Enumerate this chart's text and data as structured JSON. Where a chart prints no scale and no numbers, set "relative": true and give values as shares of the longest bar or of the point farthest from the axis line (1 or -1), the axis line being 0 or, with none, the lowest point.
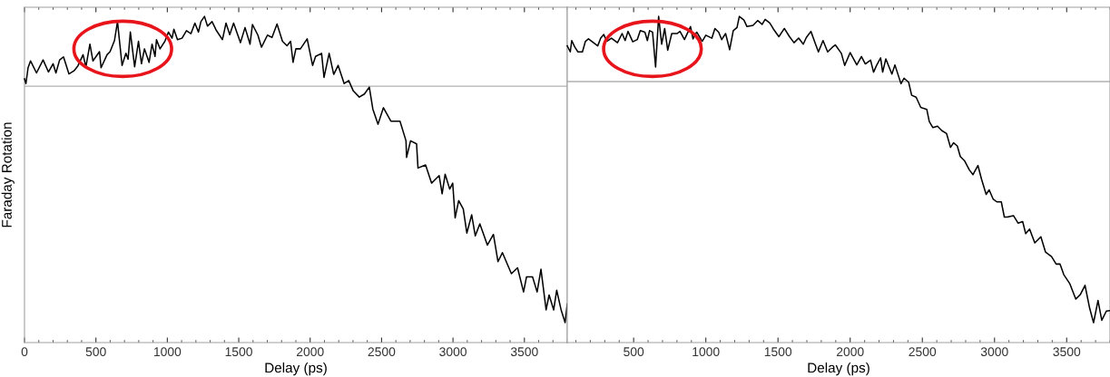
{
  "chart_data": [
    {
      "type": "line",
      "xlabel": "Delay (ps)",
      "ylabel": "Faraday Rotation",
      "relative": true,
      "xlim": [
        0,
        3800
      ],
      "xticks": [
        0,
        500,
        1000,
        1500,
        2000,
        2500,
        3000,
        3500
      ],
      "tick_labels": "x",
      "grid": false,
      "legend": false,
      "ref_lines": [
        {
          "axis": "y",
          "value": 0,
          "color": "#b0b0b0"
        }
      ],
      "series": [
        {
          "color": "#000000",
          "x": [
            0,
            10,
            25,
            42,
            84,
            130,
            168,
            200,
            220,
            246,
            273,
            311,
            346,
            374,
            410,
            430,
            458,
            479,
            525,
            536,
            578,
            599,
            630,
            651,
            683,
            710,
            725,
            741,
            771,
            798,
            819,
            840,
            872,
            893,
            914,
            924,
            949,
            983,
            1008,
            1033,
            1046,
            1071,
            1103,
            1134,
            1165,
            1193,
            1218,
            1235,
            1260,
            1281,
            1313,
            1344,
            1386,
            1411,
            1437,
            1464,
            1512,
            1544,
            1579,
            1596,
            1634,
            1659,
            1701,
            1733,
            1768,
            1806,
            1838,
            1863,
            1880,
            1900,
            1932,
            1979,
            2017,
            2038,
            2080,
            2097,
            2133,
            2165,
            2196,
            2238,
            2270,
            2302,
            2344,
            2380,
            2414,
            2439,
            2475,
            2513,
            2565,
            2629,
            2671,
            2675,
            2703,
            2745,
            2755,
            2808,
            2850,
            2903,
            2924,
            2945,
            2977,
            2998,
            3015,
            3040,
            3072,
            3097,
            3131,
            3156,
            3188,
            3241,
            3283,
            3315,
            3346,
            3409,
            3452,
            3494,
            3515,
            3557,
            3589,
            3616,
            3652,
            3673,
            3705,
            3726,
            3757,
            3785,
            3800
          ],
          "values": [
            0.031,
            0.011,
            0.078,
            0.107,
            0.056,
            0.111,
            0.06,
            0.095,
            0.056,
            0.111,
            0.124,
            0.052,
            0.065,
            0.086,
            0.133,
            0.082,
            0.178,
            0.107,
            0.146,
            0.078,
            0.133,
            0.146,
            0.193,
            0.273,
            0.088,
            0.139,
            0.114,
            0.229,
            0.082,
            0.19,
            0.095,
            0.158,
            0.101,
            0.178,
            0.126,
            0.197,
            0.158,
            0.19,
            0.229,
            0.203,
            0.241,
            0.197,
            0.203,
            0.235,
            0.222,
            0.267,
            0.229,
            0.273,
            0.295,
            0.254,
            0.273,
            0.235,
            0.197,
            0.267,
            0.218,
            0.267,
            0.184,
            0.248,
            0.178,
            0.261,
            0.216,
            0.165,
            0.216,
            0.206,
            0.263,
            0.19,
            0.171,
            0.19,
            0.101,
            0.158,
            0.158,
            0.2,
            0.088,
            0.126,
            0.139,
            0.037,
            0.139,
            0.05,
            0.088,
            0.011,
            0.024,
            -0.02,
            -0.046,
            -0.033,
            -0.004,
            -0.097,
            -0.161,
            -0.091,
            -0.148,
            -0.148,
            -0.231,
            -0.301,
            -0.231,
            -0.244,
            -0.346,
            -0.333,
            -0.41,
            -0.378,
            -0.455,
            -0.372,
            -0.435,
            -0.41,
            -0.557,
            -0.484,
            -0.519,
            -0.621,
            -0.544,
            -0.633,
            -0.582,
            -0.672,
            -0.627,
            -0.742,
            -0.704,
            -0.793,
            -0.768,
            -0.87,
            -0.806,
            -0.806,
            -0.87,
            -0.774,
            -0.946,
            -0.883,
            -0.946,
            -0.863,
            -0.946,
            -1.0,
            -0.921
          ]
        }
      ]
    },
    {
      "type": "line",
      "xlabel": "Delay (ps)",
      "relative": true,
      "xlim": [
        40,
        3800
      ],
      "xticks": [
        500,
        1000,
        1500,
        2000,
        2500,
        3000,
        3500
      ],
      "tick_labels": "x",
      "grid": false,
      "legend": false,
      "ref_lines": [
        {
          "axis": "y",
          "value": 0,
          "color": "#b0b0b0"
        }
      ],
      "series": [
        {
          "color": "#000000",
          "x": [
            40,
            61,
            71,
            93,
            114,
            145,
            166,
            187,
            251,
            272,
            293,
            314,
            346,
            388,
            420,
            441,
            461,
            494,
            525,
            546,
            578,
            595,
            610,
            631,
            652,
            673,
            694,
            715,
            736,
            764,
            800,
            821,
            852,
            894,
            911,
            937,
            975,
            1000,
            1042,
            1063,
            1089,
            1110,
            1137,
            1165,
            1190,
            1216,
            1232,
            1264,
            1285,
            1327,
            1359,
            1390,
            1411,
            1443,
            1468,
            1506,
            1544,
            1580,
            1611,
            1643,
            1675,
            1696,
            1728,
            1759,
            1780,
            1812,
            1844,
            1876,
            1897,
            1939,
            1962,
            2000,
            2046,
            2078,
            2105,
            2141,
            2162,
            2183,
            2211,
            2225,
            2247,
            2289,
            2310,
            2352,
            2373,
            2405,
            2426,
            2457,
            2489,
            2531,
            2548,
            2573,
            2605,
            2636,
            2668,
            2695,
            2716,
            2742,
            2763,
            2794,
            2826,
            2851,
            2885,
            2910,
            2942,
            2963,
            2990,
            3016,
            3047,
            3068,
            3089,
            3131,
            3163,
            3195,
            3216,
            3243,
            3279,
            3321,
            3353,
            3395,
            3427,
            3454,
            3480,
            3522,
            3563,
            3595,
            3627,
            3659,
            3686,
            3717,
            3743,
            3775,
            3800
          ],
          "values": [
            0.148,
            0.123,
            0.17,
            0.142,
            0.123,
            0.123,
            0.167,
            0.177,
            0.148,
            0.18,
            0.195,
            0.167,
            0.18,
            0.161,
            0.199,
            0.17,
            0.208,
            0.165,
            0.174,
            0.211,
            0.205,
            0.17,
            0.211,
            0.205,
            0.06,
            0.27,
            0.155,
            0.22,
            0.13,
            0.199,
            0.199,
            0.208,
            0.174,
            0.228,
            0.177,
            0.205,
            0.167,
            0.192,
            0.18,
            0.22,
            0.205,
            0.174,
            0.199,
            0.132,
            0.211,
            0.224,
            0.27,
            0.255,
            0.228,
            0.233,
            0.253,
            0.237,
            0.258,
            0.243,
            0.218,
            0.186,
            0.22,
            0.186,
            0.161,
            0.18,
            0.155,
            0.182,
            0.208,
            0.157,
            0.123,
            0.17,
            0.123,
            0.142,
            0.152,
            0.117,
            0.067,
            0.12,
            0.069,
            0.104,
            0.073,
            0.089,
            0.039,
            0.067,
            0.098,
            0.039,
            0.094,
            0.031,
            0.069,
            -0.009,
            0.014,
            -0.003,
            -0.057,
            -0.065,
            -0.107,
            -0.116,
            -0.166,
            -0.191,
            -0.185,
            -0.204,
            -0.216,
            -0.273,
            -0.254,
            -0.267,
            -0.311,
            -0.33,
            -0.367,
            -0.386,
            -0.348,
            -0.405,
            -0.468,
            -0.449,
            -0.487,
            -0.499,
            -0.499,
            -0.562,
            -0.562,
            -0.556,
            -0.587,
            -0.581,
            -0.631,
            -0.612,
            -0.669,
            -0.644,
            -0.707,
            -0.726,
            -0.757,
            -0.757,
            -0.801,
            -0.839,
            -0.902,
            -0.883,
            -0.845,
            -0.94,
            -1.0,
            -0.908,
            -0.99,
            -0.952,
            -0.95
          ]
        }
      ]
    }
  ]
}
